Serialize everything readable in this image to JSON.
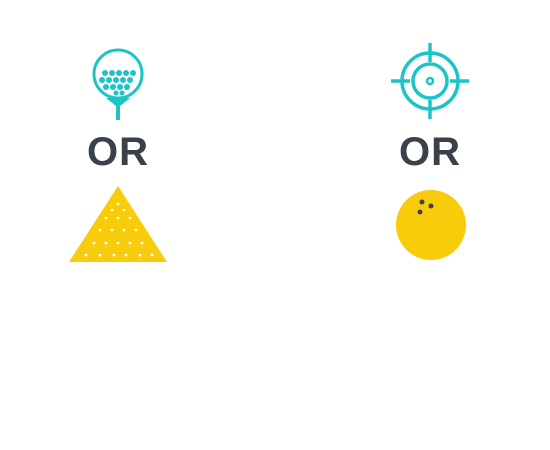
{
  "left": {
    "top_icon": "golf-ball-on-tee",
    "or_text": "OR",
    "bottom_icon": "pyramid"
  },
  "right": {
    "top_icon": "crosshair-target",
    "or_text": "OR",
    "bottom_icon": "bowling-ball"
  },
  "colors": {
    "teal": "#1cc4c8",
    "yellow": "#f7cd0b",
    "dark_text": "#3a4148",
    "holes": "#3a4148"
  }
}
